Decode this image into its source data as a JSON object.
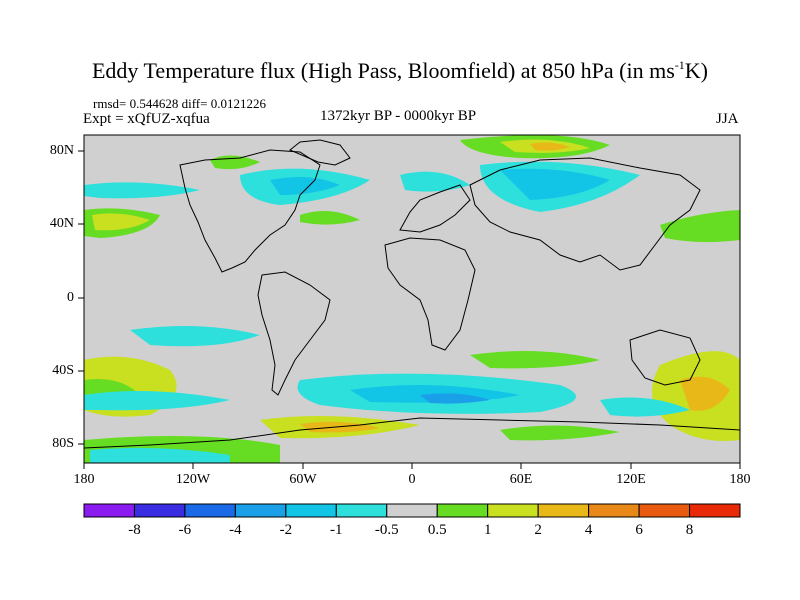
{
  "title": {
    "main": "Eddy Temperature flux (High Pass, Bloomfield) at 850 hPa (in ms",
    "sup": "-1",
    "tail": "K)"
  },
  "subtitle": {
    "stats": "rmsd= 0.544628 diff= 0.0121226",
    "expt": "Expt = xQfUZ-xqfua",
    "period": "1372kyr BP - 0000kyr BP",
    "season": "JJA"
  },
  "axes": {
    "lat_labels": [
      "80N",
      "40N",
      "0",
      "40S",
      "80S"
    ],
    "lon_labels": [
      "180",
      "120W",
      "60W",
      "0",
      "60E",
      "120E",
      "180"
    ]
  },
  "colorbar": {
    "labels": [
      "-8",
      "-6",
      "-4",
      "-2",
      "-1",
      "-0.5",
      "0.5",
      "1",
      "2",
      "4",
      "6",
      "8"
    ],
    "colors": [
      "#8a1cf0",
      "#3a2ce0",
      "#1a6ae8",
      "#1aa0e8",
      "#12c4e6",
      "#2ee0dc",
      "#d0d0d0",
      "#66dd22",
      "#c8e020",
      "#e8b818",
      "#e88818",
      "#e85a10",
      "#e82a08"
    ]
  },
  "colors": {
    "background_field": "#d0d0d0",
    "coast": "#000000"
  }
}
